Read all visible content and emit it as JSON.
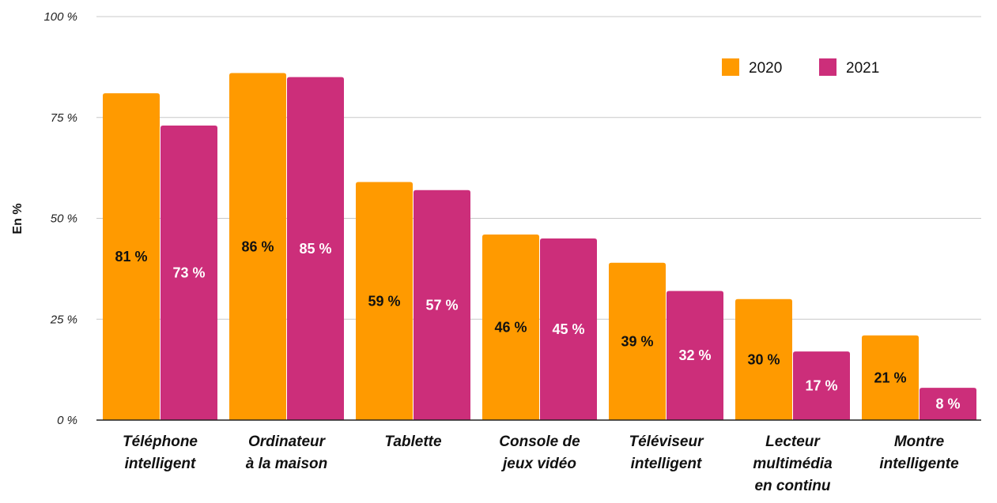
{
  "chart_data": {
    "type": "bar",
    "ylabel": "En %",
    "ylim": [
      0,
      100
    ],
    "yticks": [
      0,
      25,
      50,
      75,
      100
    ],
    "ytick_labels": [
      "0 %",
      "25 %",
      "50 %",
      "75 %",
      "100 %"
    ],
    "grid": true,
    "legend_position": "top-right",
    "categories": [
      [
        "Téléphone",
        "intelligent"
      ],
      [
        "Ordinateur",
        "à la maison"
      ],
      [
        "Tablette"
      ],
      [
        "Console de",
        "jeux vidéo"
      ],
      [
        "Téléviseur",
        "intelligent"
      ],
      [
        "Lecteur",
        "multimédia",
        "en continu"
      ],
      [
        "Montre",
        "intelligente"
      ]
    ],
    "series": [
      {
        "name": "2020",
        "color": "#FF9A00",
        "label_color": "#111111",
        "values": [
          81,
          86,
          59,
          46,
          39,
          30,
          21
        ],
        "labels": [
          "81 %",
          "86 %",
          "59 %",
          "46 %",
          "39 %",
          "30 %",
          "21 %"
        ]
      },
      {
        "name": "2021",
        "color": "#CC2E7A",
        "label_color": "#ffffff",
        "values": [
          73,
          85,
          57,
          45,
          32,
          17,
          8
        ],
        "labels": [
          "73 %",
          "85 %",
          "57 %",
          "45 %",
          "32 %",
          "17 %",
          "8 %"
        ]
      }
    ]
  }
}
